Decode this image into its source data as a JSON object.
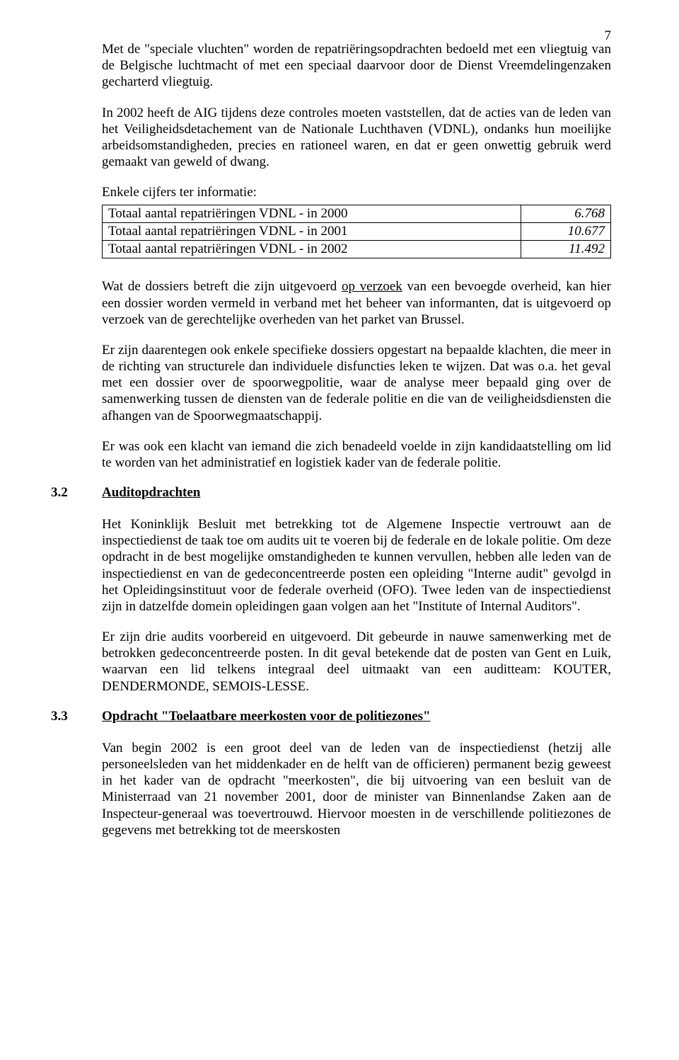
{
  "page_number": "7",
  "paragraphs": {
    "p1": "Met de \"speciale vluchten\" worden de repatriëringsopdrachten bedoeld met een vliegtuig van de Belgische luchtmacht of met een speciaal daarvoor door de Dienst Vreemdelingenzaken gecharterd vliegtuig.",
    "p2": "In 2002 heeft de AIG tijdens deze controles moeten vaststellen, dat de acties van de leden van het Veiligheidsdetachement van de Nationale Luchthaven (VDNL), ondanks hun moeilijke arbeidsomstandigheden, precies en rationeel waren, en dat er geen onwettig gebruik werd gemaakt van geweld of dwang.",
    "intro": "Enkele cijfers ter informatie:",
    "p3a": "Wat de dossiers betreft die zijn uitgevoerd ",
    "p3u": "op verzoek",
    "p3b": " van een bevoegde overheid, kan hier een dossier worden vermeld in verband met het beheer van informanten, dat is uitgevoerd op verzoek van de gerechtelijke overheden van het parket van Brussel.",
    "p4": "Er zijn daarentegen ook enkele specifieke dossiers opgestart na bepaalde klachten, die meer in de richting van structurele dan individuele disfuncties leken te wijzen. Dat was o.a. het geval met een dossier over de spoorwegpolitie, waar de analyse meer bepaald ging over de samenwerking tussen de diensten van de federale politie en die van de veiligheidsdiensten die afhangen van de Spoorwegmaatschappij.",
    "p5": "Er was ook een klacht van iemand die zich benadeeld voelde in zijn kandidaatstelling om lid te worden van het administratief en logistiek kader van de federale politie.",
    "p6": "Het Koninklijk Besluit met betrekking tot de Algemene Inspectie vertrouwt aan de inspectiedienst de taak toe om audits uit te voeren bij de federale en de lokale politie. Om deze opdracht in de best mogelijke omstandigheden te kunnen vervullen, hebben alle leden van de inspectiedienst en van de gedeconcentreerde posten een opleiding \"Interne audit\" gevolgd in het Opleidingsinstituut voor de federale overheid (OFO). Twee leden van de inspectiedienst zijn in datzelfde domein opleidingen gaan volgen aan het \"Institute of Internal Auditors\".",
    "p7": "Er zijn drie audits voorbereid en uitgevoerd. Dit gebeurde in nauwe samenwerking met de betrokken gedeconcentreerde posten. In dit geval betekende dat de posten van Gent en Luik, waarvan een lid telkens integraal deel uitmaakt van een auditteam: KOUTER, DENDERMONDE, SEMOIS-LESSE.",
    "p8": "Van begin 2002 is een groot deel van de leden van de inspectiedienst (hetzij alle personeelsleden van het middenkader en de helft van de officieren) permanent bezig geweest in het kader van de opdracht \"meerkosten\", die bij uitvoering van een besluit van de Ministerraad van 21 november 2001, door de minister van Binnenlandse Zaken aan de Inspecteur-generaal was toevertrouwd.  Hiervoor moesten in de verschillende politiezones de gegevens met betrekking tot de meerskosten"
  },
  "table": {
    "rows": [
      {
        "label": "Totaal aantal repatriëringen VDNL - in 2000",
        "value": "6.768"
      },
      {
        "label": "Totaal aantal repatriëringen VDNL - in 2001",
        "value": "10.677"
      },
      {
        "label": "Totaal aantal repatriëringen VDNL - in 2002",
        "value": "11.492"
      }
    ]
  },
  "sections": {
    "s32": {
      "num": "3.2",
      "title": "Auditopdrachten"
    },
    "s33": {
      "num": "3.3",
      "title": "Opdracht \"Toelaatbare meerkosten voor de politiezones\""
    }
  }
}
